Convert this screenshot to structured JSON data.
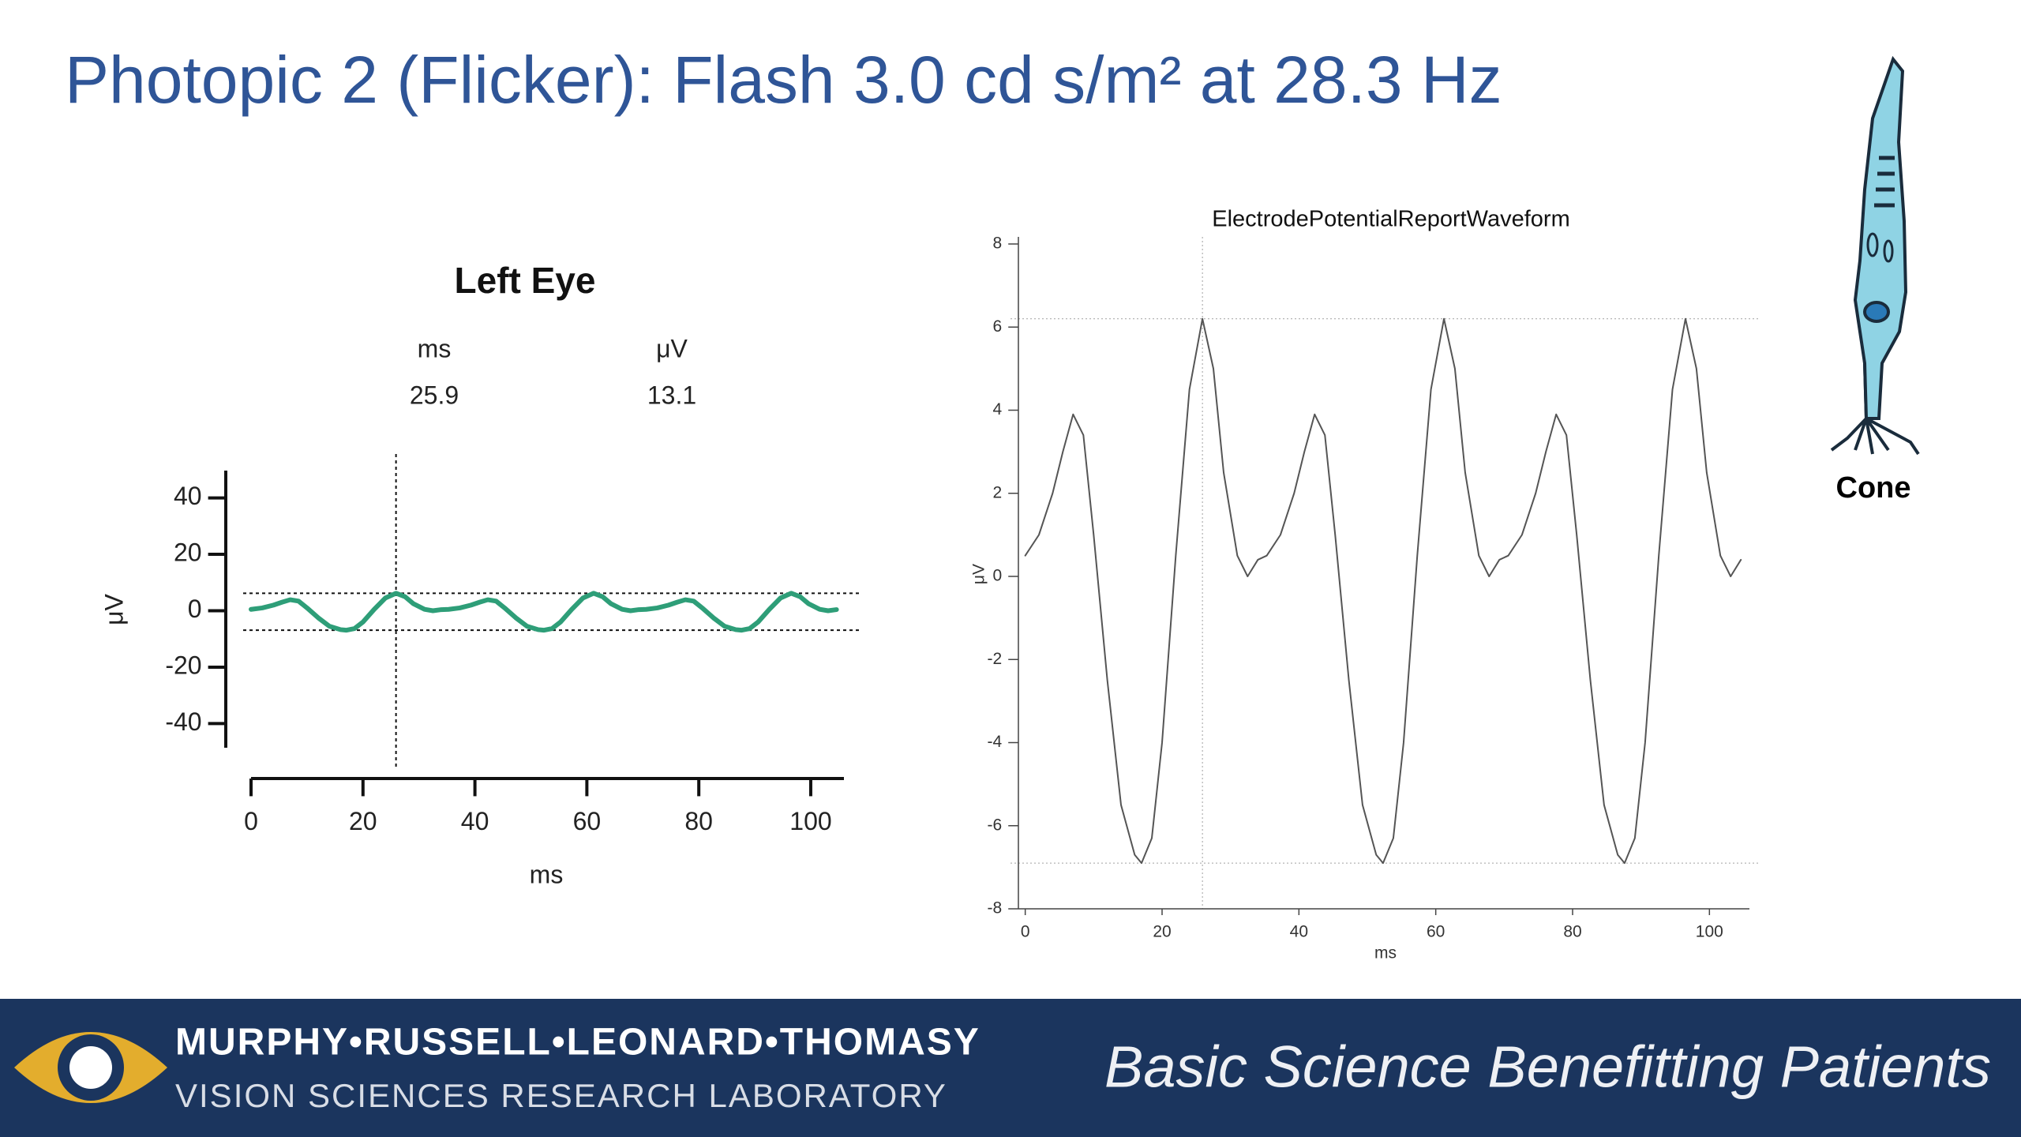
{
  "slide_title": "Photopic 2 (Flicker): Flash 3.0 cd s/m² at 28.3 Hz",
  "cell_label": "Cone",
  "footer": {
    "line1": "MURPHY•RUSSELL•LEONARD•THOMASY",
    "line2": "VISION SCIENCES RESEARCH LABORATORY",
    "tagline": "Basic Science Benefitting Patients"
  },
  "chart_data": [
    {
      "type": "line",
      "title": "Left Eye",
      "xlabel": "ms",
      "ylabel": "μV",
      "color": "#2e9e78",
      "readout": {
        "headers": [
          "ms",
          "μV"
        ],
        "values": [
          25.9,
          13.1
        ]
      },
      "cursor_x": 25.9,
      "hlines": [
        6.2,
        -6.9
      ],
      "xlim": [
        0,
        106
      ],
      "xticks": [
        0,
        20,
        40,
        60,
        80,
        100
      ],
      "ylim": [
        -48,
        48
      ],
      "yticks": [
        -40,
        -20,
        0,
        20,
        40
      ],
      "x": [
        0,
        2,
        4,
        5.5,
        7,
        8.5,
        10,
        12,
        14,
        16,
        17,
        18.5,
        20,
        22,
        24,
        25.9,
        27.5,
        29,
        31,
        32.5,
        34,
        35.3,
        37.3,
        39.3,
        40.8,
        42.3,
        43.8,
        45.3,
        47.3,
        49.3,
        51.3,
        52.3,
        53.8,
        55.3,
        57.3,
        59.3,
        61.2,
        62.8,
        64.3,
        66.3,
        67.8,
        69.3,
        70.6,
        72.6,
        74.6,
        76.1,
        77.6,
        79.1,
        80.6,
        82.6,
        84.6,
        86.6,
        87.6,
        89.1,
        90.6,
        92.6,
        94.6,
        96.5,
        98.1,
        99.6,
        101.6,
        103.1,
        104.6
      ],
      "values": [
        0.5,
        1.0,
        2.0,
        3.0,
        3.9,
        3.4,
        1.0,
        -2.5,
        -5.5,
        -6.7,
        -6.9,
        -6.3,
        -4.0,
        0.5,
        4.5,
        6.2,
        5.0,
        2.5,
        0.5,
        0.0,
        0.4,
        0.5,
        1.0,
        2.0,
        3.0,
        3.9,
        3.4,
        1.0,
        -2.5,
        -5.5,
        -6.7,
        -6.9,
        -6.3,
        -4.0,
        0.5,
        4.5,
        6.2,
        5.0,
        2.5,
        0.5,
        0.0,
        0.4,
        0.5,
        1.0,
        2.0,
        3.0,
        3.9,
        3.4,
        1.0,
        -2.5,
        -5.5,
        -6.7,
        -6.9,
        -6.3,
        -4.0,
        0.5,
        4.5,
        6.2,
        5.0,
        2.5,
        0.5,
        0.0,
        0.4
      ]
    },
    {
      "type": "line",
      "title": "ElectrodePotentialReportWaveform",
      "xlabel": "ms",
      "ylabel": "μV",
      "color": "#555555",
      "cursor_x": 25.9,
      "hlines": [
        6.2,
        -6.9
      ],
      "xlim": [
        -1,
        105.5
      ],
      "xticks": [
        0,
        20,
        40,
        60,
        80,
        100
      ],
      "ylim": [
        -8,
        8
      ],
      "yticks": [
        -8,
        -6,
        -4,
        -2,
        0,
        2,
        4,
        6,
        8
      ],
      "x": [
        0,
        2,
        4,
        5.5,
        7,
        8.5,
        10,
        12,
        14,
        16,
        17,
        18.5,
        20,
        22,
        24,
        25.9,
        27.5,
        29,
        31,
        32.5,
        34,
        35.3,
        37.3,
        39.3,
        40.8,
        42.3,
        43.8,
        45.3,
        47.3,
        49.3,
        51.3,
        52.3,
        53.8,
        55.3,
        57.3,
        59.3,
        61.2,
        62.8,
        64.3,
        66.3,
        67.8,
        69.3,
        70.6,
        72.6,
        74.6,
        76.1,
        77.6,
        79.1,
        80.6,
        82.6,
        84.6,
        86.6,
        87.6,
        89.1,
        90.6,
        92.6,
        94.6,
        96.5,
        98.1,
        99.6,
        101.6,
        103.1,
        104.6
      ],
      "values": [
        0.5,
        1.0,
        2.0,
        3.0,
        3.9,
        3.4,
        1.0,
        -2.5,
        -5.5,
        -6.7,
        -6.9,
        -6.3,
        -4.0,
        0.5,
        4.5,
        6.2,
        5.0,
        2.5,
        0.5,
        0.0,
        0.4,
        0.5,
        1.0,
        2.0,
        3.0,
        3.9,
        3.4,
        1.0,
        -2.5,
        -5.5,
        -6.7,
        -6.9,
        -6.3,
        -4.0,
        0.5,
        4.5,
        6.2,
        5.0,
        2.5,
        0.5,
        0.0,
        0.4,
        0.5,
        1.0,
        2.0,
        3.0,
        3.9,
        3.4,
        1.0,
        -2.5,
        -5.5,
        -6.7,
        -6.9,
        -6.3,
        -4.0,
        0.5,
        4.5,
        6.2,
        5.0,
        2.5,
        0.5,
        0.0,
        0.4
      ]
    }
  ]
}
